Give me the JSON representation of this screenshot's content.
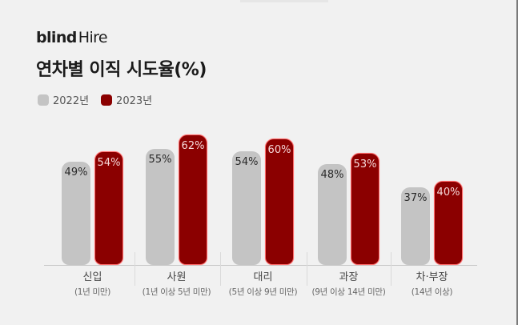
{
  "brand": {
    "logo_bold": "blind",
    "logo_regular": "Hire"
  },
  "title": "연차별 이직 시도율(%)",
  "legend": [
    {
      "label": "2022년",
      "color": "#c4c4c4"
    },
    {
      "label": "2023년",
      "color": "#8b0000"
    }
  ],
  "colors": {
    "series_2022": "#c4c4c4",
    "series_2023": "#8b0000",
    "background": "#f1f1f1"
  },
  "categories": [
    {
      "name": "신입",
      "sub": "(1년 미만)",
      "v2022": "49%",
      "v2023": "54%"
    },
    {
      "name": "사원",
      "sub": "(1년 이상 5년 미만)",
      "v2022": "55%",
      "v2023": "62%"
    },
    {
      "name": "대리",
      "sub": "(5년 이상 9년 미만)",
      "v2022": "54%",
      "v2023": "60%"
    },
    {
      "name": "과장",
      "sub": "(9년 이상 14년 미만)",
      "v2022": "48%",
      "v2023": "53%"
    },
    {
      "name": "차·부장",
      "sub": "(14년 이상)",
      "v2022": "37%",
      "v2023": "40%"
    }
  ],
  "chart_data": {
    "type": "bar",
    "title": "연차별 이직 시도율(%)",
    "categories": [
      "신입 (1년 미만)",
      "사원 (1년 이상 5년 미만)",
      "대리 (5년 이상 9년 미만)",
      "과장 (9년 이상 14년 미만)",
      "차·부장 (14년 이상)"
    ],
    "series": [
      {
        "name": "2022년",
        "color": "#c4c4c4",
        "values": [
          49,
          55,
          54,
          48,
          37
        ]
      },
      {
        "name": "2023년",
        "color": "#8b0000",
        "values": [
          54,
          62,
          60,
          53,
          40
        ]
      }
    ],
    "xlabel": "",
    "ylabel": "이직 시도율(%)",
    "ylim": [
      0,
      100
    ],
    "grid": false,
    "legend_position": "top-left",
    "data_labels": true
  }
}
